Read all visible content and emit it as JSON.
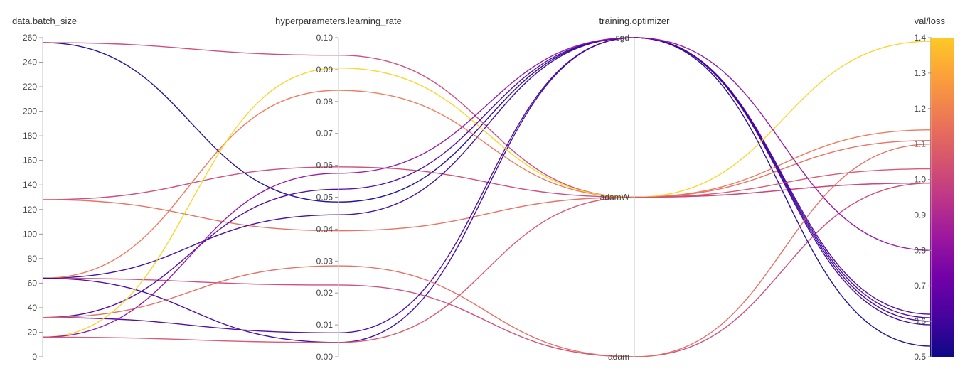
{
  "chart_data": {
    "type": "parallel_coordinates",
    "dimensions": [
      {
        "name": "data.batch_size",
        "kind": "numeric",
        "range": [
          0,
          260
        ],
        "ticks": [
          0,
          20,
          40,
          60,
          80,
          100,
          120,
          140,
          160,
          180,
          200,
          220,
          240,
          260
        ]
      },
      {
        "name": "hyperparameters.learning_rate",
        "kind": "numeric",
        "range": [
          0,
          0.1
        ],
        "ticks": [
          "0.00",
          "0.01",
          "0.02",
          "0.03",
          "0.04",
          "0.05",
          "0.06",
          "0.07",
          "0.08",
          "0.09",
          "0.10"
        ]
      },
      {
        "name": "training.optimizer",
        "kind": "categorical",
        "categories": [
          "adam",
          "adamW",
          "sgd"
        ]
      },
      {
        "name": "val/loss",
        "kind": "numeric",
        "range": [
          0.5,
          1.4
        ],
        "ticks": [
          "0.5",
          "0.6",
          "0.7",
          "0.8",
          "0.9",
          "1.0",
          "1.1",
          "1.2",
          "1.3",
          "1.4"
        ]
      }
    ],
    "color_scale": {
      "name": "plasma",
      "dimension": "val/loss",
      "range": [
        0.5,
        1.4
      ],
      "stops": [
        "#0d0887",
        "#46039f",
        "#7201a8",
        "#9c179e",
        "#bd3786",
        "#d8576b",
        "#ed7953",
        "#fb9f3a",
        "#fdca26",
        "#f0f921"
      ]
    },
    "runs": [
      {
        "batch_size": 256,
        "learning_rate": 0.0485,
        "optimizer": "sgd",
        "val_loss": 0.53
      },
      {
        "batch_size": 256,
        "learning_rate": 0.0945,
        "optimizer": "adamW",
        "val_loss": 0.99
      },
      {
        "batch_size": 128,
        "learning_rate": 0.0595,
        "optimizer": "adamW",
        "val_loss": 0.99
      },
      {
        "batch_size": 128,
        "learning_rate": 0.0395,
        "optimizer": "adamW",
        "val_loss": 1.11
      },
      {
        "batch_size": 64,
        "learning_rate": 0.0445,
        "optimizer": "sgd",
        "val_loss": 0.59
      },
      {
        "batch_size": 64,
        "learning_rate": 0.0835,
        "optimizer": "adamW",
        "val_loss": 1.14
      },
      {
        "batch_size": 64,
        "learning_rate": 0.0225,
        "optimizer": "adam",
        "val_loss": 0.99
      },
      {
        "batch_size": 64,
        "learning_rate": 0.0045,
        "optimizer": "sgd",
        "val_loss": 0.6
      },
      {
        "batch_size": 32,
        "learning_rate": 0.0075,
        "optimizer": "sgd",
        "val_loss": 0.61
      },
      {
        "batch_size": 32,
        "learning_rate": 0.0525,
        "optimizer": "sgd",
        "val_loss": 0.62
      },
      {
        "batch_size": 32,
        "learning_rate": 0.0285,
        "optimizer": "adam",
        "val_loss": 1.1
      },
      {
        "batch_size": 16,
        "learning_rate": 0.0905,
        "optimizer": "adamW",
        "val_loss": 1.39
      },
      {
        "batch_size": 16,
        "learning_rate": 0.0575,
        "optimizer": "sgd",
        "val_loss": 0.8
      },
      {
        "batch_size": 16,
        "learning_rate": 0.0045,
        "optimizer": "adamW",
        "val_loss": 1.03
      }
    ]
  }
}
